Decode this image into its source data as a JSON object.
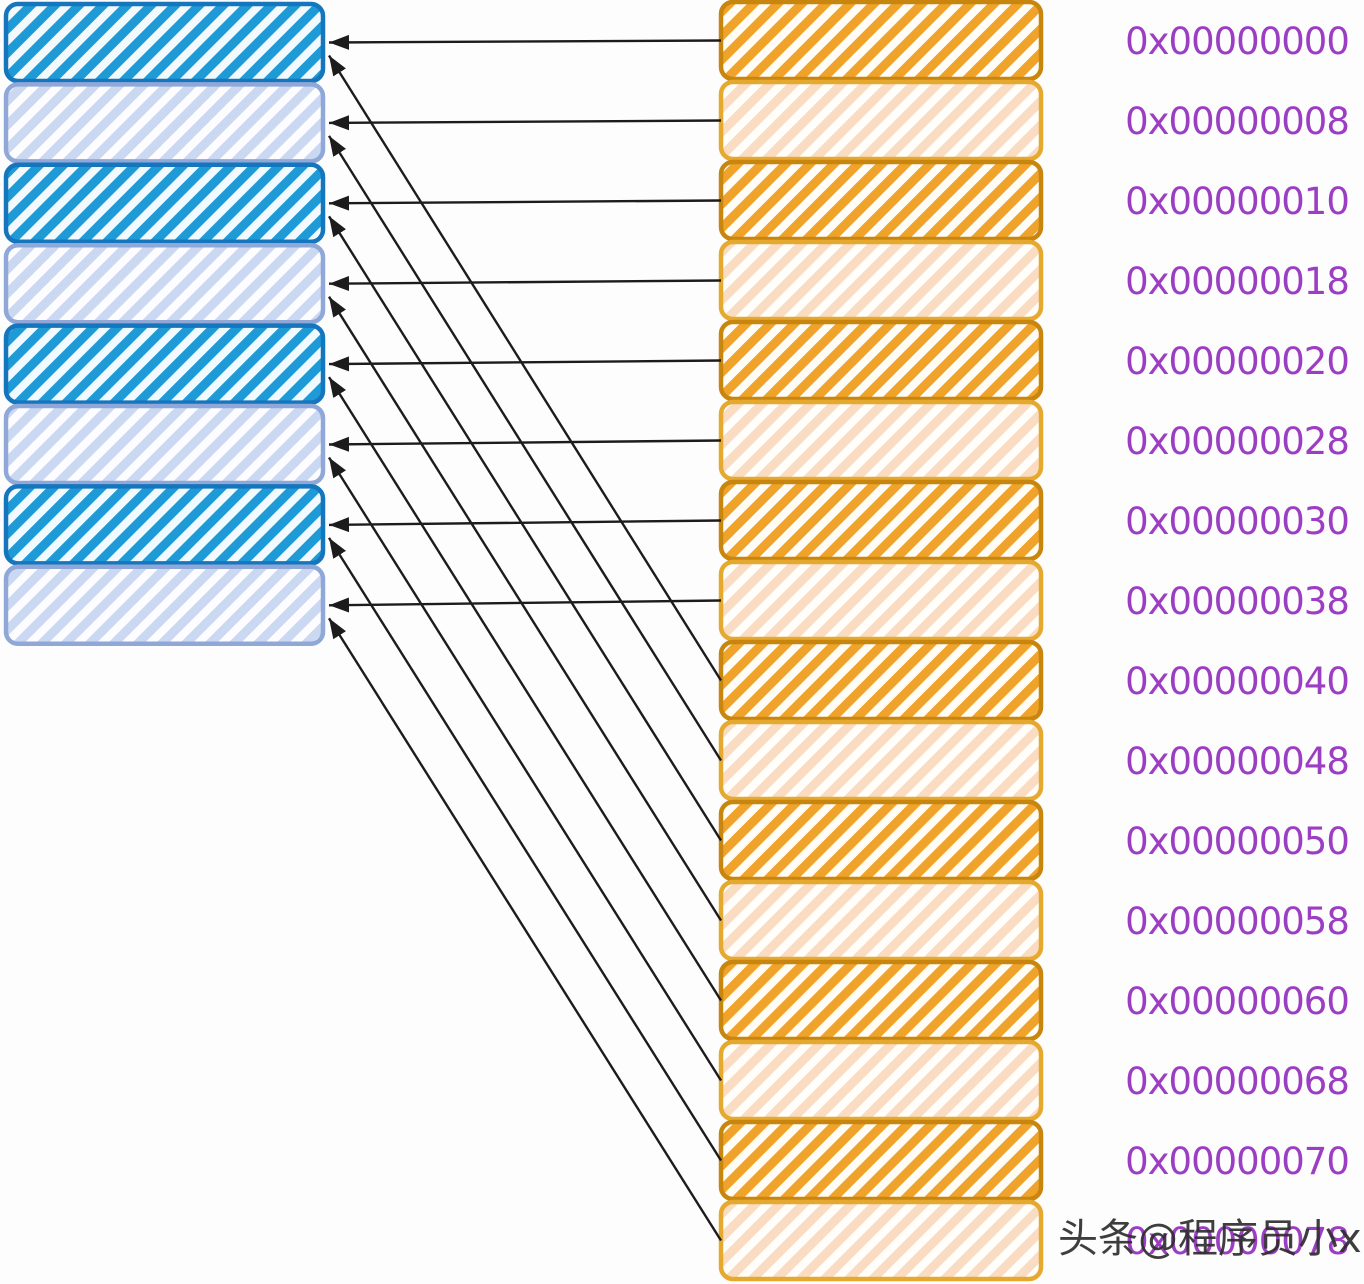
{
  "colors": {
    "page_bg": "#FDFDFE",
    "cache_dark_stripe": "#1E9AD6",
    "cache_dark_bg": "#F2FAFE",
    "cache_dark_border": "#1576BE",
    "cache_light_stripe": "#CBD8F1",
    "cache_light_bg": "#FDFDFF",
    "cache_light_border": "#8FA8D8",
    "memory_dark_stripe": "#F0A32B",
    "memory_dark_bg": "#FFFDF6",
    "memory_dark_border": "#C9860E",
    "memory_light_stripe": "#FADCC3",
    "memory_light_bg": "#FFFEFB",
    "memory_light_border": "#E6A930",
    "arrow": "#1C1C1C",
    "address_text": "#9C3EC3",
    "watermark_text": "#2E2E2E"
  },
  "cache": {
    "block_count": 8
  },
  "memory": {
    "block_count": 16,
    "addresses": [
      "0x00000000",
      "0x00000008",
      "0x00000010",
      "0x00000018",
      "0x00000020",
      "0x00000028",
      "0x00000030",
      "0x00000038",
      "0x00000040",
      "0x00000048",
      "0x00000050",
      "0x00000058",
      "0x00000060",
      "0x00000068",
      "0x00000070",
      "0x00000078"
    ]
  },
  "mappings": [
    {
      "memory_block": 0,
      "cache_block": 0
    },
    {
      "memory_block": 1,
      "cache_block": 1
    },
    {
      "memory_block": 2,
      "cache_block": 2
    },
    {
      "memory_block": 3,
      "cache_block": 3
    },
    {
      "memory_block": 4,
      "cache_block": 4
    },
    {
      "memory_block": 5,
      "cache_block": 5
    },
    {
      "memory_block": 6,
      "cache_block": 6
    },
    {
      "memory_block": 7,
      "cache_block": 7
    },
    {
      "memory_block": 8,
      "cache_block": 0
    },
    {
      "memory_block": 9,
      "cache_block": 1
    },
    {
      "memory_block": 10,
      "cache_block": 2
    },
    {
      "memory_block": 11,
      "cache_block": 3
    },
    {
      "memory_block": 12,
      "cache_block": 4
    },
    {
      "memory_block": 13,
      "cache_block": 5
    },
    {
      "memory_block": 14,
      "cache_block": 6
    },
    {
      "memory_block": 15,
      "cache_block": 7
    }
  ],
  "watermark": {
    "text": "头条@程序员小x"
  }
}
